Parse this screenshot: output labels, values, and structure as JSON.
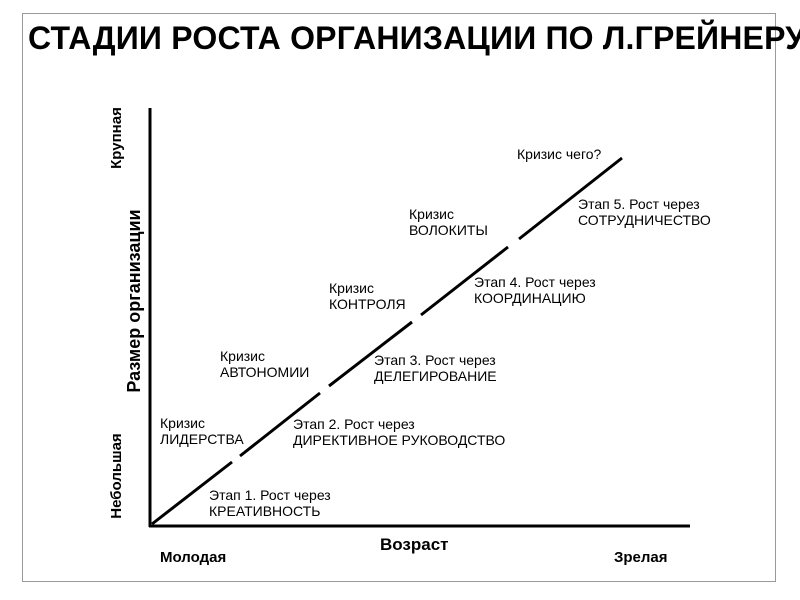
{
  "title": "СТАДИИ РОСТА ОРГАНИЗАЦИИ ПО Л.ГРЕЙНЕРУ",
  "axes": {
    "x_title": "Возраст",
    "x_start": "Молодая",
    "x_end": "Зрелая",
    "y_title": "Размер организации",
    "y_start": "Небольшая",
    "y_end": "Крупная"
  },
  "stages": [
    {
      "line1": "Этап 1. Рост через",
      "line2": "КРЕАТИВНОСТЬ"
    },
    {
      "line1": "Этап 2. Рост через",
      "line2": "ДИРЕКТИВНОЕ  РУКОВОДСТВО"
    },
    {
      "line1": "Этап 3. Рост через",
      "line2": "ДЕЛЕГИРОВАНИЕ"
    },
    {
      "line1": "Этап 4. Рост через",
      "line2": "КООРДИНАЦИЮ"
    },
    {
      "line1": "Этап 5. Рост через",
      "line2": "СОТРУДНИЧЕСТВО"
    }
  ],
  "crises": [
    {
      "line1": "Кризис",
      "line2": "ЛИДЕРСТВА"
    },
    {
      "line1": "Кризис",
      "line2": "АВТОНОМИИ"
    },
    {
      "line1": "Кризис",
      "line2": "КОНТРОЛЯ"
    },
    {
      "line1": "Кризис",
      "line2": "ВОЛОКИТЫ"
    },
    {
      "line1": "Кризис  чего?",
      "line2": ""
    }
  ]
}
